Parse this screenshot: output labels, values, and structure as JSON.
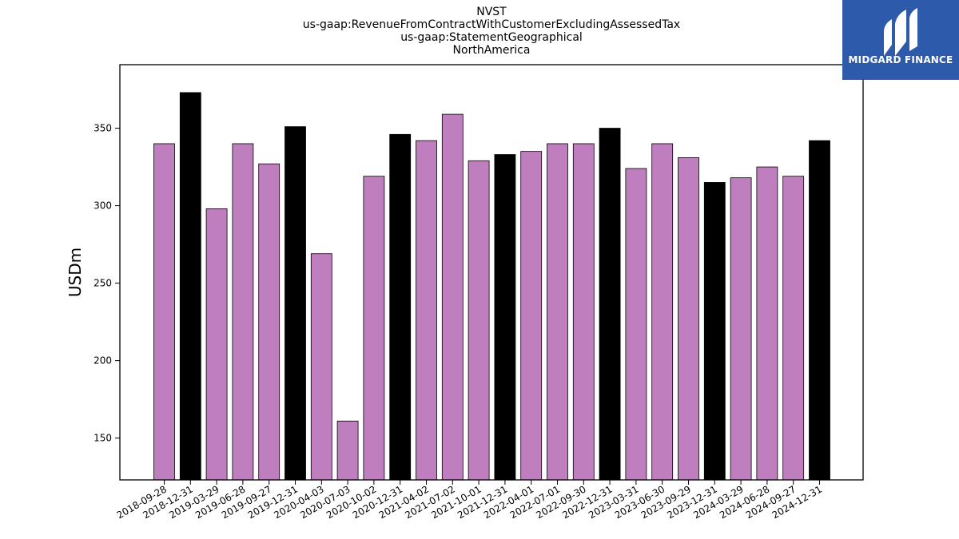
{
  "title_lines": [
    "NVST",
    "us-gaap:RevenueFromContractWithCustomerExcludingAssessedTax",
    "us-gaap:StatementGeographical",
    "NorthAmerica"
  ],
  "logo": {
    "text": "MIDGARD FINANCE",
    "background": "#2e5aac"
  },
  "chart_data": {
    "type": "bar",
    "ylabel": "USDm",
    "ylim": [
      123,
      391
    ],
    "yticks": [
      150,
      200,
      250,
      300,
      350
    ],
    "colors": {
      "quarter": "#bf7fbf",
      "year_end": "#000000"
    },
    "categories": [
      "2018-09-28",
      "2018-12-31",
      "2019-03-29",
      "2019-06-28",
      "2019-09-27",
      "2019-12-31",
      "2020-04-03",
      "2020-07-03",
      "2020-10-02",
      "2020-12-31",
      "2021-04-02",
      "2021-07-02",
      "2021-10-01",
      "2021-12-31",
      "2022-04-01",
      "2022-07-01",
      "2022-09-30",
      "2022-12-31",
      "2023-03-31",
      "2023-06-30",
      "2023-09-29",
      "2023-12-31",
      "2024-03-29",
      "2024-06-28",
      "2024-09-27",
      "2024-12-31"
    ],
    "values": [
      340,
      373,
      298,
      340,
      327,
      351,
      269,
      161,
      319,
      346,
      342,
      359,
      329,
      333,
      335,
      340,
      340,
      350,
      324,
      340,
      331,
      315,
      318,
      325,
      319,
      342
    ],
    "year_end": [
      false,
      true,
      false,
      false,
      false,
      true,
      false,
      false,
      false,
      true,
      false,
      false,
      false,
      true,
      false,
      false,
      false,
      true,
      false,
      false,
      false,
      true,
      false,
      false,
      false,
      true
    ]
  }
}
